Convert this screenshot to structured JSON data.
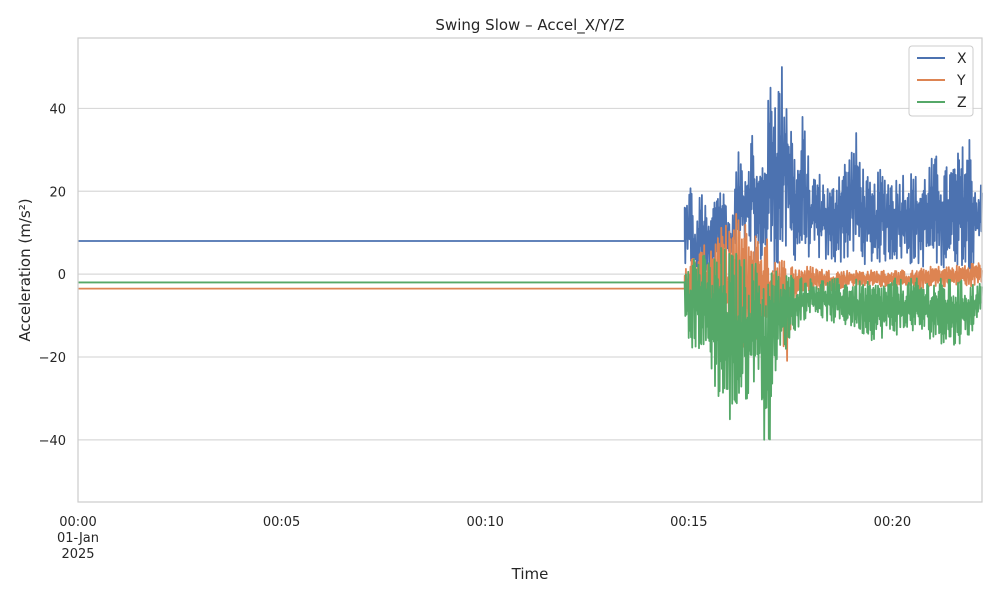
{
  "chart_data": {
    "type": "line",
    "title": "Swing Slow – Accel_X/Y/Z",
    "xlabel": "Time",
    "ylabel": "Acceleration (m/s²)",
    "x_unit": "minutes",
    "xlim": [
      0,
      22.2
    ],
    "ylim": [
      -55,
      57
    ],
    "grid": "horizontal",
    "legend_position": "top-right",
    "x_ticks": [
      {
        "value": 0,
        "label": "00:00",
        "sublabel": "01-Jan",
        "sublabel2": "2025"
      },
      {
        "value": 5,
        "label": "00:05"
      },
      {
        "value": 10,
        "label": "00:10"
      },
      {
        "value": 15,
        "label": "00:15"
      },
      {
        "value": 20,
        "label": "00:20"
      }
    ],
    "y_ticks": [
      {
        "value": 40,
        "label": "40"
      },
      {
        "value": 20,
        "label": "20"
      },
      {
        "value": 0,
        "label": "0"
      },
      {
        "value": -20,
        "label": "−20"
      },
      {
        "value": -40,
        "label": "−40"
      }
    ],
    "series": [
      {
        "name": "X",
        "color": "#4c72b0",
        "baseline": 8,
        "active_start": 14.9,
        "active_end": 22.2,
        "points": [
          [
            14.95,
            19
          ],
          [
            15.05,
            24
          ],
          [
            15.15,
            10
          ],
          [
            15.3,
            22
          ],
          [
            15.5,
            12
          ],
          [
            15.7,
            24
          ],
          [
            15.9,
            20
          ],
          [
            16.05,
            10
          ],
          [
            16.15,
            26
          ],
          [
            16.25,
            31
          ],
          [
            16.4,
            28
          ],
          [
            16.55,
            37
          ],
          [
            16.7,
            25
          ],
          [
            16.8,
            29
          ],
          [
            16.9,
            36
          ],
          [
            17.0,
            49
          ],
          [
            17.05,
            52
          ],
          [
            17.15,
            47
          ],
          [
            17.25,
            51
          ],
          [
            17.35,
            53
          ],
          [
            17.5,
            40
          ],
          [
            17.6,
            30
          ],
          [
            17.7,
            28
          ],
          [
            17.8,
            40
          ],
          [
            17.9,
            32
          ],
          [
            18.0,
            22
          ],
          [
            18.1,
            26
          ],
          [
            18.3,
            24
          ],
          [
            18.5,
            21
          ],
          [
            18.7,
            28
          ],
          [
            18.9,
            29
          ],
          [
            19.1,
            35
          ],
          [
            19.3,
            26
          ],
          [
            19.5,
            21
          ],
          [
            19.7,
            26
          ],
          [
            19.9,
            25
          ],
          [
            20.1,
            24
          ],
          [
            20.3,
            26
          ],
          [
            20.5,
            25
          ],
          [
            20.7,
            23
          ],
          [
            20.9,
            28
          ],
          [
            21.1,
            29
          ],
          [
            21.3,
            26
          ],
          [
            21.5,
            28
          ],
          [
            21.7,
            31
          ],
          [
            21.9,
            35
          ],
          [
            22.05,
            22
          ]
        ],
        "low": [
          [
            15.0,
            0
          ],
          [
            15.3,
            -2
          ],
          [
            15.7,
            2
          ],
          [
            16.0,
            3
          ],
          [
            16.4,
            4
          ],
          [
            16.8,
            2
          ],
          [
            17.2,
            0
          ],
          [
            17.6,
            3
          ],
          [
            18.0,
            4
          ],
          [
            18.5,
            2
          ],
          [
            19.0,
            3
          ],
          [
            19.5,
            2
          ],
          [
            20.0,
            3
          ],
          [
            20.5,
            2
          ],
          [
            21.0,
            1
          ],
          [
            21.5,
            2
          ],
          [
            22.0,
            1
          ],
          [
            22.2,
            9
          ]
        ]
      },
      {
        "name": "Y",
        "color": "#dd8452",
        "baseline": -3.5,
        "active_start": 14.9,
        "active_end": 22.2,
        "points": [
          [
            15.0,
            4
          ],
          [
            15.3,
            6
          ],
          [
            15.6,
            10
          ],
          [
            15.9,
            12
          ],
          [
            16.1,
            16
          ],
          [
            16.3,
            14
          ],
          [
            16.5,
            12
          ],
          [
            16.8,
            10
          ],
          [
            17.0,
            8
          ],
          [
            17.2,
            6
          ],
          [
            17.4,
            4
          ],
          [
            17.6,
            2
          ],
          [
            18.0,
            2
          ],
          [
            18.5,
            1
          ],
          [
            19.0,
            1
          ],
          [
            19.5,
            1
          ],
          [
            20.0,
            1
          ],
          [
            20.5,
            1
          ],
          [
            21.0,
            2
          ],
          [
            21.5,
            2
          ],
          [
            22.0,
            3
          ]
        ],
        "low": [
          [
            15.0,
            -8
          ],
          [
            15.3,
            -10
          ],
          [
            15.6,
            -14
          ],
          [
            15.9,
            -20
          ],
          [
            16.1,
            -27
          ],
          [
            16.3,
            -20
          ],
          [
            16.5,
            -18
          ],
          [
            16.8,
            -16
          ],
          [
            17.0,
            -17
          ],
          [
            17.2,
            -14
          ],
          [
            17.35,
            -26
          ],
          [
            17.6,
            -6
          ],
          [
            18.0,
            -4
          ],
          [
            18.5,
            -4
          ],
          [
            19.0,
            -3
          ],
          [
            19.5,
            -3
          ],
          [
            20.0,
            -3
          ],
          [
            20.5,
            -4
          ],
          [
            21.0,
            -3
          ],
          [
            21.5,
            -3
          ],
          [
            22.0,
            -3
          ],
          [
            22.2,
            -2
          ]
        ]
      },
      {
        "name": "Z",
        "color": "#55a868",
        "baseline": -2,
        "active_start": 14.9,
        "active_end": 22.2,
        "points": [
          [
            14.95,
            8
          ],
          [
            15.2,
            6
          ],
          [
            15.5,
            4
          ],
          [
            15.8,
            7
          ],
          [
            16.1,
            6
          ],
          [
            16.4,
            4
          ],
          [
            16.7,
            3
          ],
          [
            17.0,
            2
          ],
          [
            17.3,
            1
          ],
          [
            17.6,
            0
          ],
          [
            18.0,
            -1
          ],
          [
            18.5,
            -1
          ],
          [
            19.0,
            -1
          ],
          [
            19.5,
            -2
          ],
          [
            20.0,
            -1
          ],
          [
            20.5,
            -1
          ],
          [
            21.0,
            -1
          ],
          [
            21.5,
            -1
          ],
          [
            22.0,
            -2
          ]
        ],
        "low": [
          [
            14.95,
            -21
          ],
          [
            15.2,
            -18
          ],
          [
            15.5,
            -22
          ],
          [
            15.7,
            -30
          ],
          [
            15.9,
            -36
          ],
          [
            16.1,
            -37
          ],
          [
            16.3,
            -33
          ],
          [
            16.5,
            -30
          ],
          [
            16.7,
            -22
          ],
          [
            16.85,
            -42
          ],
          [
            16.95,
            -50
          ],
          [
            17.05,
            -26
          ],
          [
            17.3,
            -20
          ],
          [
            17.6,
            -14
          ],
          [
            18.0,
            -9
          ],
          [
            18.5,
            -12
          ],
          [
            19.0,
            -13
          ],
          [
            19.5,
            -16
          ],
          [
            20.0,
            -15
          ],
          [
            20.5,
            -14
          ],
          [
            21.0,
            -16
          ],
          [
            21.5,
            -18
          ],
          [
            22.0,
            -14
          ],
          [
            22.2,
            -7
          ]
        ]
      }
    ]
  }
}
